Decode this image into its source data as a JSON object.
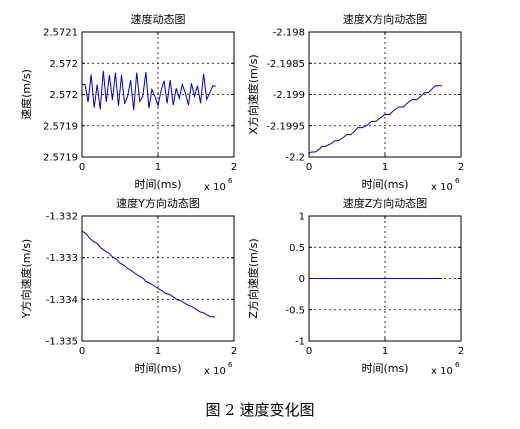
{
  "figure": {
    "caption": "图 2 速度变化图"
  },
  "chart_data": [
    {
      "type": "line",
      "title": "速度动态图",
      "xlabel": "时间(ms)",
      "ylabel": "速度(m/s)",
      "x_exponent_label": "x 10",
      "x_exponent": "6",
      "xlim": [
        0,
        2
      ],
      "ylim": [
        2.5719,
        2.5721
      ],
      "xticks": [
        "0",
        "1",
        "2"
      ],
      "yticks": [
        "2.5719",
        "2.5719",
        "2.572",
        "2.572",
        "2.5721"
      ],
      "ytick_values": [
        2.5719,
        2.57195,
        2.572,
        2.57205,
        2.5721
      ],
      "grid": true,
      "series": [
        {
          "color": "#0000cc",
          "x": [
            0.0,
            0.04,
            0.08,
            0.12,
            0.16,
            0.2,
            0.24,
            0.28,
            0.32,
            0.36,
            0.4,
            0.44,
            0.48,
            0.52,
            0.56,
            0.6,
            0.64,
            0.68,
            0.72,
            0.76,
            0.8,
            0.84,
            0.88,
            0.92,
            0.96,
            1.0,
            1.04,
            1.08,
            1.12,
            1.16,
            1.2,
            1.24,
            1.28,
            1.32,
            1.36,
            1.4,
            1.44,
            1.48,
            1.52,
            1.56,
            1.6,
            1.64,
            1.68,
            1.72,
            1.76
          ],
          "y": [
            2.572016,
            2.572016,
            2.571988,
            2.572032,
            2.571979,
            2.572016,
            2.571976,
            2.572038,
            2.571988,
            2.572031,
            2.571991,
            2.572035,
            2.571982,
            2.572031,
            2.571985,
            2.571997,
            2.572023,
            2.571975,
            2.572035,
            2.571989,
            2.571997,
            2.572036,
            2.571978,
            2.572008,
            2.571997,
            2.571982,
            2.572006,
            2.572022,
            2.571986,
            2.572023,
            2.571983,
            2.57201,
            2.571994,
            2.572016,
            2.572002,
            2.571983,
            2.572018,
            2.571997,
            2.572014,
            2.571986,
            2.572033,
            2.571992,
            2.572002,
            2.572014,
            2.572013
          ]
        }
      ]
    },
    {
      "type": "line",
      "title": "速度X方向动态图",
      "xlabel": "时间(ms)",
      "ylabel": "X方向速度(m/s)",
      "x_exponent_label": "x 10",
      "x_exponent": "6",
      "xlim": [
        0,
        2
      ],
      "ylim": [
        -2.2,
        -2.198
      ],
      "xticks": [
        "0",
        "1",
        "2"
      ],
      "yticks": [
        "-2.2",
        "-2.1995",
        "-2.199",
        "-2.1985",
        "-2.198"
      ],
      "ytick_values": [
        -2.2,
        -2.1995,
        -2.199,
        -2.1985,
        -2.198
      ],
      "grid": true,
      "series": [
        {
          "color": "#0000cc",
          "x": [
            0.0,
            0.03,
            0.08,
            0.14,
            0.17,
            0.22,
            0.3,
            0.34,
            0.38,
            0.45,
            0.5,
            0.55,
            0.6,
            0.64,
            0.7,
            0.78,
            0.82,
            0.88,
            0.94,
            1.0,
            1.06,
            1.12,
            1.18,
            1.24,
            1.3,
            1.36,
            1.42,
            1.48,
            1.52,
            1.57,
            1.62,
            1.66,
            1.7,
            1.75
          ],
          "y": [
            -2.19995,
            -2.19992,
            -2.19992,
            -2.19987,
            -2.19983,
            -2.19983,
            -2.19978,
            -2.19974,
            -2.19974,
            -2.19969,
            -2.19964,
            -2.19964,
            -2.19959,
            -2.19953,
            -2.19953,
            -2.19948,
            -2.19943,
            -2.19943,
            -2.19937,
            -2.19932,
            -2.19932,
            -2.19925,
            -2.1992,
            -2.1992,
            -2.19913,
            -2.19908,
            -2.19908,
            -2.19902,
            -2.19897,
            -2.19897,
            -2.19891,
            -2.19886,
            -2.19886,
            -2.19886
          ]
        }
      ]
    },
    {
      "type": "line",
      "title": "速度Y方向动态图",
      "xlabel": "时间(ms)",
      "ylabel": "Y方向速度(m/s)",
      "x_exponent_label": "x 10",
      "x_exponent": "6",
      "xlim": [
        0,
        2
      ],
      "ylim": [
        -1.335,
        -1.332
      ],
      "xticks": [
        "0",
        "1",
        "2"
      ],
      "yticks": [
        "-1.335",
        "-1.334",
        "-1.333",
        "-1.332"
      ],
      "ytick_values": [
        -1.335,
        -1.334,
        -1.333,
        -1.332
      ],
      "grid": true,
      "series": [
        {
          "color": "#0000cc",
          "x": [
            0.0,
            0.05,
            0.1,
            0.15,
            0.2,
            0.25,
            0.3,
            0.35,
            0.4,
            0.45,
            0.5,
            0.55,
            0.6,
            0.65,
            0.7,
            0.75,
            0.8,
            0.85,
            0.9,
            0.95,
            1.0,
            1.05,
            1.1,
            1.15,
            1.2,
            1.25,
            1.3,
            1.35,
            1.4,
            1.45,
            1.5,
            1.55,
            1.6,
            1.65,
            1.7,
            1.75
          ],
          "y": [
            -1.33236,
            -1.33242,
            -1.33253,
            -1.33261,
            -1.33266,
            -1.33277,
            -1.33283,
            -1.33289,
            -1.33298,
            -1.33303,
            -1.33313,
            -1.33318,
            -1.33326,
            -1.33331,
            -1.33338,
            -1.33344,
            -1.33349,
            -1.33358,
            -1.33362,
            -1.33368,
            -1.33374,
            -1.33379,
            -1.33386,
            -1.33388,
            -1.33394,
            -1.33401,
            -1.33403,
            -1.33409,
            -1.33414,
            -1.33418,
            -1.33424,
            -1.3343,
            -1.33432,
            -1.33438,
            -1.33442,
            -1.33442
          ]
        }
      ]
    },
    {
      "type": "line",
      "title": "速度Z方向动态图",
      "xlabel": "时间(ms)",
      "ylabel": "Z方向速度(m/s)",
      "x_exponent_label": "x 10",
      "x_exponent": "6",
      "xlim": [
        0,
        2
      ],
      "ylim": [
        -1,
        1
      ],
      "xticks": [
        "0",
        "1",
        "2"
      ],
      "yticks": [
        "-1",
        "-0.5",
        "0",
        "0.5",
        "1"
      ],
      "ytick_values": [
        -1,
        -0.5,
        0,
        0.5,
        1
      ],
      "grid": true,
      "series": [
        {
          "color": "#0000cc",
          "x": [
            0.0,
            1.75
          ],
          "y": [
            0,
            0
          ]
        }
      ]
    }
  ]
}
